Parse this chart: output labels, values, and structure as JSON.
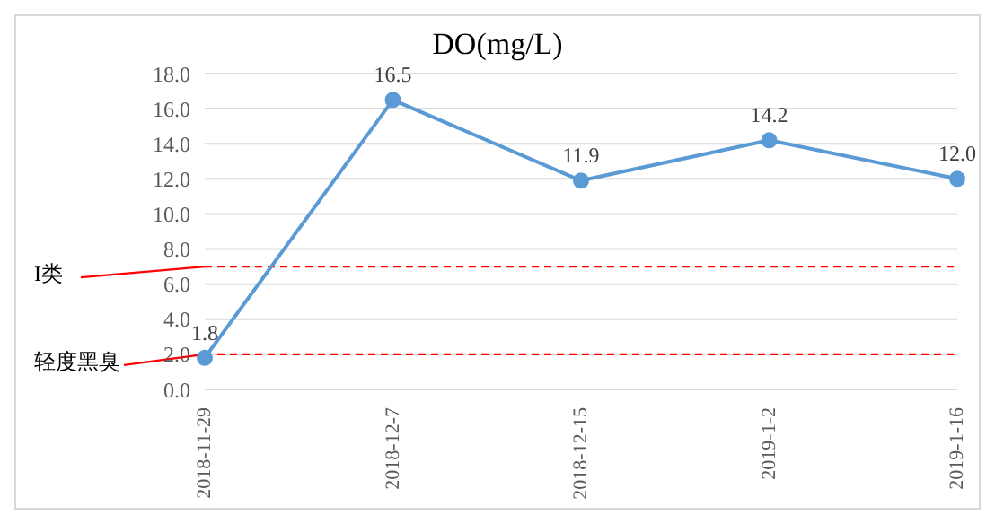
{
  "chart_data": {
    "type": "line",
    "title": "DO(mg/L)",
    "categories": [
      "2018-11-29",
      "2018-12-7",
      "2018-12-15",
      "2019-1-2",
      "2019-1-16"
    ],
    "series": [
      {
        "color": "#5b9bd5",
        "values": [
          1.8,
          16.5,
          11.9,
          14.2,
          12.0
        ],
        "value_labels": [
          "1.8",
          "16.5",
          "11.9",
          "14.2",
          "12.0"
        ]
      }
    ],
    "ylim": [
      0,
      18
    ],
    "yticks": [
      {
        "value": 0,
        "label": "0.0"
      },
      {
        "value": 2,
        "label": "2.0"
      },
      {
        "value": 4,
        "label": "4.0"
      },
      {
        "value": 6,
        "label": "6.0"
      },
      {
        "value": 8,
        "label": "8.0"
      },
      {
        "value": 10,
        "label": "10.0"
      },
      {
        "value": 12,
        "label": "12.0"
      },
      {
        "value": 14,
        "label": "14.0"
      },
      {
        "value": 16,
        "label": "16.0"
      },
      {
        "value": 18,
        "label": "18.0"
      }
    ],
    "grid": "y",
    "marker": "circle",
    "line_style": "solid",
    "ref_lines": [
      {
        "axis": "y",
        "value": 7,
        "label": "I类",
        "color": "#ff0000",
        "line_style": "dashed"
      },
      {
        "axis": "y",
        "value": 2,
        "label": "轻度黑臭",
        "color": "#ff0000",
        "line_style": "dashed"
      }
    ]
  }
}
